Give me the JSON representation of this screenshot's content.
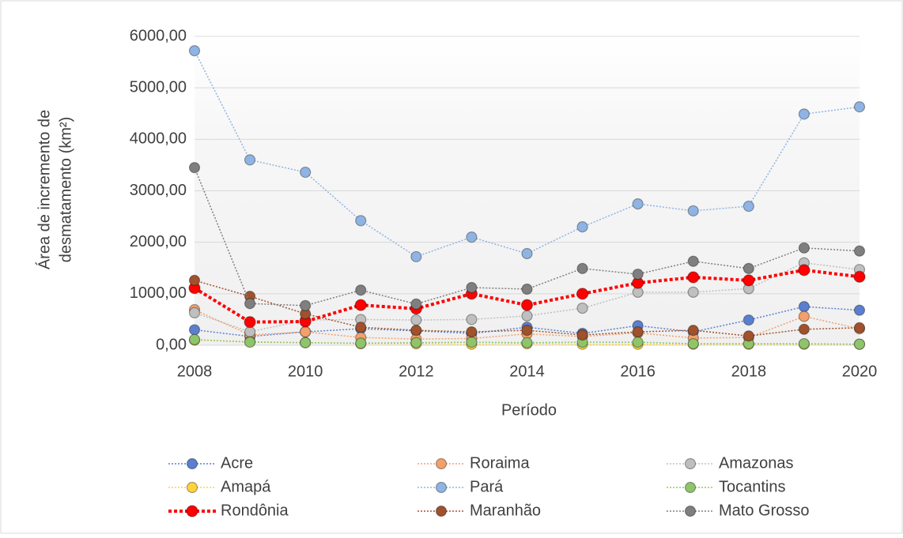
{
  "chart_data": {
    "type": "line",
    "y_label": [
      "Área de incremento de",
      "desmatamento (km²)"
    ],
    "x_label": "Período",
    "x": [
      2008,
      2009,
      2010,
      2011,
      2012,
      2013,
      2014,
      2015,
      2016,
      2017,
      2018,
      2019,
      2020
    ],
    "xlim": [
      2008,
      2020
    ],
    "xticks": [
      2008,
      2010,
      2012,
      2014,
      2016,
      2018,
      2020
    ],
    "ylim": [
      0,
      6000
    ],
    "yticks": [
      {
        "value": 0,
        "label": "0,00"
      },
      {
        "value": 1000,
        "label": "1000,00"
      },
      {
        "value": 2000,
        "label": "2000,00"
      },
      {
        "value": 3000,
        "label": "3000,00"
      },
      {
        "value": 4000,
        "label": "4000,00"
      },
      {
        "value": 5000,
        "label": "5000,00"
      },
      {
        "value": 6000,
        "label": "6000,00"
      }
    ],
    "grid": true,
    "legend": "bottom",
    "series": [
      {
        "name": "Acre",
        "color": "#5b7fcf",
        "linewidth": 1.5,
        "values": [
          300,
          170,
          260,
          320,
          280,
          230,
          350,
          230,
          380,
          260,
          490,
          750,
          680
        ]
      },
      {
        "name": "Roraima",
        "color": "#f4a06b",
        "linewidth": 1.5,
        "values": [
          690,
          200,
          260,
          150,
          120,
          130,
          220,
          170,
          240,
          140,
          150,
          560,
          320
        ]
      },
      {
        "name": "Amazonas",
        "color": "#bfbfbf",
        "linewidth": 1.5,
        "values": [
          630,
          260,
          490,
          500,
          490,
          500,
          570,
          720,
          1030,
          1030,
          1100,
          1600,
          1470
        ]
      },
      {
        "name": "Amapá",
        "color": "#ffd43b",
        "linewidth": 1.5,
        "values": [
          100,
          70,
          50,
          30,
          30,
          20,
          30,
          20,
          20,
          20,
          20,
          20,
          20
        ]
      },
      {
        "name": "Pará",
        "color": "#8fb4e3",
        "linewidth": 1.5,
        "values": [
          5720,
          3600,
          3360,
          2420,
          1720,
          2100,
          1780,
          2300,
          2745,
          2610,
          2700,
          4490,
          4630
        ]
      },
      {
        "name": "Tocantins",
        "color": "#8fc56a",
        "linewidth": 1.5,
        "values": [
          110,
          60,
          50,
          40,
          50,
          60,
          50,
          60,
          60,
          30,
          30,
          30,
          20
        ]
      },
      {
        "name": "Rondônia",
        "color": "#ff0000",
        "linewidth": 4,
        "values": [
          1110,
          450,
          460,
          780,
          710,
          1000,
          780,
          1000,
          1210,
          1320,
          1260,
          1460,
          1330
        ]
      },
      {
        "name": "Maranhão",
        "color": "#a0522d",
        "linewidth": 1.5,
        "values": [
          1260,
          950,
          610,
          350,
          290,
          260,
          290,
          200,
          260,
          290,
          180,
          310,
          340
        ]
      },
      {
        "name": "Mato Grosso",
        "color": "#7f7f7f",
        "linewidth": 1.5,
        "values": [
          3450,
          810,
          770,
          1070,
          800,
          1120,
          1090,
          1490,
          1380,
          1630,
          1490,
          1890,
          1830
        ]
      }
    ]
  }
}
